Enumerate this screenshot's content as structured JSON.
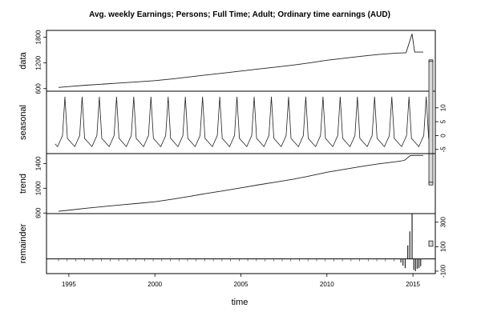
{
  "chart_data": {
    "type": "line",
    "title": "Avg. weekly Earnings; Persons; Full Time; Adult; Ordinary time earnings (AUD)",
    "xlabel": "time",
    "xlim": [
      1993.7,
      2016.3
    ],
    "x_ticks": [
      "1995",
      "2000",
      "2005",
      "2010",
      "2015"
    ],
    "grid": false,
    "panels": [
      {
        "name": "data",
        "ylabel": "data",
        "ylim": [
          540,
          1960
        ],
        "y_ticks": [
          "600",
          "1200",
          "1800"
        ],
        "range_bar_span": 44,
        "x": [
          1994.4,
          1995,
          1996,
          1997,
          1998,
          1999,
          2000,
          2001,
          2002,
          2003,
          2004,
          2005,
          2006,
          2007,
          2008,
          2009,
          2010,
          2011,
          2012,
          2013,
          2014,
          2014.6,
          2014.95,
          2015.1,
          2015.6
        ],
        "y": [
          628,
          648,
          680,
          706,
          732,
          758,
          786,
          826,
          872,
          920,
          964,
          1010,
          1058,
          1102,
          1148,
          1202,
          1262,
          1310,
          1356,
          1398,
          1428,
          1438,
          1880,
          1455,
          1455
        ]
      },
      {
        "name": "seasonal",
        "ylabel": "seasonal",
        "ylim": [
          -6.5,
          16
        ],
        "y_ticks": [
          "-5",
          "0",
          "5",
          "10"
        ],
        "range_bar_span": 44,
        "x_start": 1994.2,
        "x_end": 2015.25,
        "year_pattern": [
          -3,
          -4,
          -2,
          0,
          14,
          -1,
          -2
        ]
      },
      {
        "name": "trend",
        "ylabel": "trend",
        "ylim": [
          590,
          1560
        ],
        "y_ticks": [
          "600",
          "1000",
          "1400"
        ],
        "range_bar_span": 44,
        "x": [
          1994.4,
          1995,
          1996,
          1997,
          1998,
          1999,
          2000,
          2001,
          2002,
          2003,
          2004,
          2005,
          2006,
          2007,
          2008,
          2009,
          2010,
          2011,
          2012,
          2013,
          2014,
          2014.5,
          2014.85,
          2015.2,
          2015.6
        ],
        "y": [
          628,
          645,
          676,
          704,
          730,
          755,
          782,
          822,
          868,
          916,
          960,
          1006,
          1054,
          1098,
          1144,
          1198,
          1258,
          1306,
          1352,
          1394,
          1428,
          1450,
          1528,
          1530,
          1530
        ]
      },
      {
        "name": "remainder",
        "ylabel": "remainder",
        "ylim": [
          -120,
          370
        ],
        "y_ticks": [
          "-100",
          "100",
          "300"
        ],
        "range_bar_span": 44,
        "baseline": 0,
        "spikes": [
          {
            "x": 2014.3,
            "y": -30
          },
          {
            "x": 2014.42,
            "y": -55
          },
          {
            "x": 2014.55,
            "y": -75
          },
          {
            "x": 2014.7,
            "y": 110
          },
          {
            "x": 2014.82,
            "y": 225
          },
          {
            "x": 2014.95,
            "y": 370
          },
          {
            "x": 2015.05,
            "y": -90
          },
          {
            "x": 2015.15,
            "y": -100
          },
          {
            "x": 2015.25,
            "y": -80
          },
          {
            "x": 2015.35,
            "y": -75
          },
          {
            "x": 2015.45,
            "y": -60
          }
        ]
      }
    ]
  }
}
